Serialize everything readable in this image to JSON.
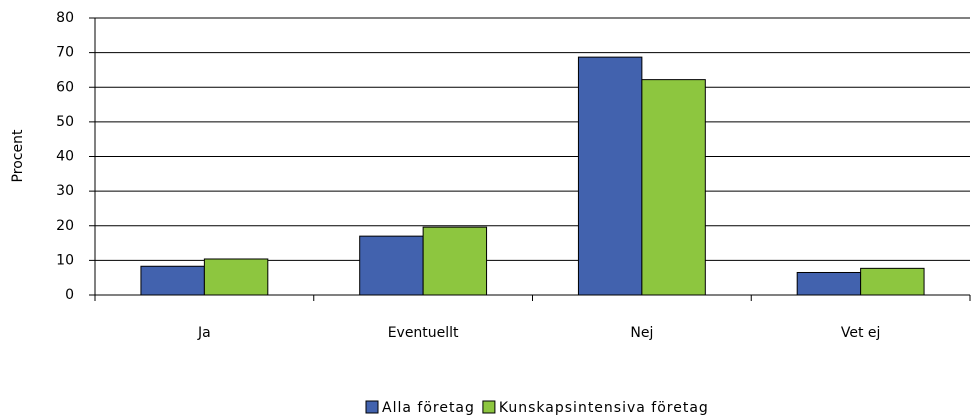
{
  "chart_data": {
    "type": "bar",
    "y_label": "Procent",
    "categories": [
      "Ja",
      "Eventuellt",
      "Nej",
      "Vet ej"
    ],
    "series": [
      {
        "name": "Alla företag",
        "color": "#4262ae",
        "values": [
          8.3,
          17,
          68.7,
          6.5
        ]
      },
      {
        "name": "Kunskapsintensiva företag",
        "color": "#8dc63f",
        "values": [
          10.4,
          19.6,
          62.2,
          7.7
        ]
      }
    ],
    "ylim": [
      0,
      80
    ],
    "yticks": [
      0,
      10,
      20,
      30,
      40,
      50,
      60,
      70,
      80
    ],
    "grid": true,
    "legend": "bottom"
  }
}
